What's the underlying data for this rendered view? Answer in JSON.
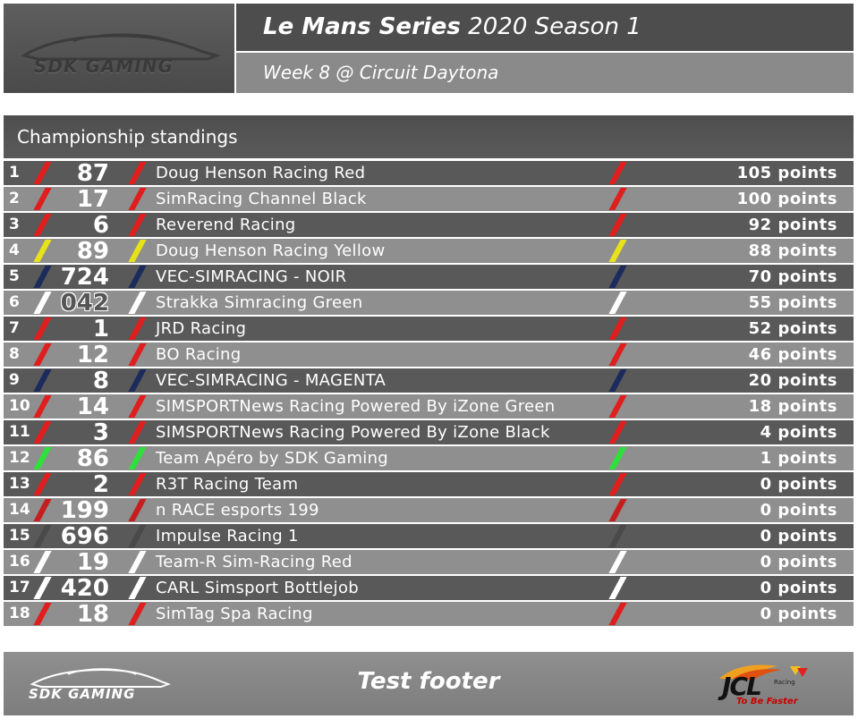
{
  "header": {
    "logo_text": "SDK GAMING",
    "title_bold": "Le Mans Series",
    "title_rest": " 2020 Season 1",
    "week": "Week 8 @ Circuit Daytona"
  },
  "section": {
    "title": "Championship standings"
  },
  "standings": [
    {
      "pos": "1",
      "num": "87",
      "team": "Doug Henson Racing Red",
      "points": "105 points",
      "color": "#e01e1e"
    },
    {
      "pos": "2",
      "num": "17",
      "team": "SimRacing Channel Black",
      "points": "100 points",
      "color": "#e01e1e"
    },
    {
      "pos": "3",
      "num": "6",
      "team": "Reverend Racing",
      "points": "92 points",
      "color": "#e01e1e"
    },
    {
      "pos": "4",
      "num": "89",
      "team": "Doug Henson Racing Yellow",
      "points": "88 points",
      "color": "#e8e21a"
    },
    {
      "pos": "5",
      "num": "724",
      "team": "VEC-SIMRACING - NOIR",
      "points": "70 points",
      "color": "#1b2b5c"
    },
    {
      "pos": "6",
      "num": "042",
      "team": "Strakka Simracing Green",
      "points": "55 points",
      "color": "#ffffff"
    },
    {
      "pos": "7",
      "num": "1",
      "team": "JRD Racing",
      "points": "52 points",
      "color": "#e01e1e"
    },
    {
      "pos": "8",
      "num": "12",
      "team": "BO Racing",
      "points": "46 points",
      "color": "#e01e1e"
    },
    {
      "pos": "9",
      "num": "8",
      "team": "VEC-SIMRACING - MAGENTA",
      "points": "20 points",
      "color": "#1b2b5c"
    },
    {
      "pos": "10",
      "num": "14",
      "team": "SIMSPORTNews Racing Powered By iZone Green",
      "points": "18 points",
      "color": "#e01e1e"
    },
    {
      "pos": "11",
      "num": "3",
      "team": "SIMSPORTNews Racing Powered By iZone Black",
      "points": "4 points",
      "color": "#e01e1e"
    },
    {
      "pos": "12",
      "num": "86",
      "team": "Team Apéro by SDK Gaming",
      "points": "1 points",
      "color": "#2ee03a"
    },
    {
      "pos": "13",
      "num": "2",
      "team": "R3T Racing Team",
      "points": "0 points",
      "color": "#e01e1e"
    },
    {
      "pos": "14",
      "num": "199",
      "team": "n RACE esports 199",
      "points": "0 points",
      "color": "#c61e1e"
    },
    {
      "pos": "15",
      "num": "696",
      "team": "Impulse Racing 1",
      "points": "0 points",
      "color": "#4a4a4a"
    },
    {
      "pos": "16",
      "num": "19",
      "team": "Team-R Sim-Racing Red",
      "points": "0 points",
      "color": "#ffffff"
    },
    {
      "pos": "17",
      "num": "420",
      "team": "CARL Simsport Bottlejob",
      "points": "0 points",
      "color": "#ffffff"
    },
    {
      "pos": "18",
      "num": "18",
      "team": "SimTag Spa Racing",
      "points": "0 points",
      "color": "#e01e1e"
    }
  ],
  "footer": {
    "logo_text": "SDK GAMING",
    "text": "Test footer",
    "partner_logo_text": "JCL",
    "partner_racing": "Racing",
    "partner_slogan": "To Be Faster"
  }
}
